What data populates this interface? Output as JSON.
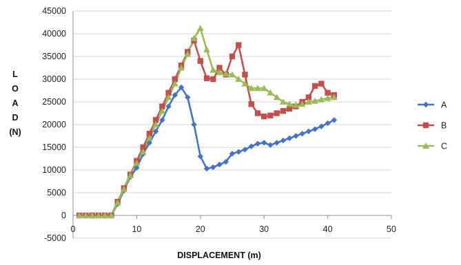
{
  "chart_data": {
    "type": "line",
    "title": "",
    "xlabel": "DISPLACEMENT (m)",
    "ylabel_lines": [
      "L",
      "O",
      "A",
      "D",
      "(N)"
    ],
    "xlim": [
      0,
      50
    ],
    "ylim": [
      -5000,
      45000
    ],
    "xticks": [
      0,
      10,
      20,
      30,
      40,
      50
    ],
    "yticks": [
      -5000,
      0,
      5000,
      10000,
      15000,
      20000,
      25000,
      30000,
      35000,
      40000,
      45000
    ],
    "grid": "horizontal",
    "legend_position": "right",
    "series": [
      {
        "name": "A",
        "color": "#4472C4",
        "marker": "diamond",
        "x": [
          1,
          2,
          3,
          4,
          5,
          6,
          7,
          8,
          9,
          10,
          11,
          12,
          13,
          14,
          15,
          16,
          17,
          18,
          19,
          20,
          21,
          22,
          23,
          24,
          25,
          26,
          27,
          28,
          29,
          30,
          31,
          32,
          33,
          34,
          35,
          36,
          37,
          38,
          39,
          40,
          41
        ],
        "y": [
          0,
          0,
          0,
          0,
          0,
          0,
          2500,
          5500,
          8500,
          10500,
          13500,
          16000,
          18500,
          21000,
          24000,
          26500,
          28200,
          26000,
          20000,
          13000,
          10300,
          10600,
          11200,
          11800,
          13600,
          14000,
          14500,
          15200,
          15800,
          16000,
          15500,
          16000,
          16500,
          17000,
          17500,
          18000,
          18500,
          19000,
          19600,
          20300,
          21000
        ]
      },
      {
        "name": "B",
        "color": "#C0504D",
        "marker": "square",
        "x": [
          1,
          2,
          3,
          4,
          5,
          6,
          7,
          8,
          9,
          10,
          11,
          12,
          13,
          14,
          15,
          16,
          17,
          18,
          19,
          20,
          21,
          22,
          23,
          24,
          25,
          26,
          27,
          28,
          29,
          30,
          31,
          32,
          33,
          34,
          35,
          36,
          37,
          38,
          39,
          40,
          41
        ],
        "y": [
          0,
          0,
          0,
          0,
          0,
          0,
          3000,
          6000,
          9000,
          12000,
          15000,
          18000,
          21000,
          24000,
          27000,
          30000,
          33000,
          36000,
          38500,
          34000,
          30200,
          30000,
          32500,
          31000,
          35000,
          37500,
          31000,
          24500,
          22500,
          21800,
          22000,
          22500,
          23000,
          23500,
          24000,
          25000,
          26000,
          28500,
          29000,
          27000,
          26500
        ]
      },
      {
        "name": "C",
        "color": "#9BBB59",
        "marker": "triangle",
        "x": [
          1,
          2,
          3,
          4,
          5,
          6,
          7,
          8,
          9,
          10,
          11,
          12,
          13,
          14,
          15,
          16,
          17,
          18,
          19,
          20,
          21,
          22,
          23,
          24,
          25,
          26,
          27,
          28,
          29,
          30,
          31,
          32,
          33,
          34,
          35,
          36,
          37,
          38,
          39,
          40,
          41
        ],
        "y": [
          0,
          0,
          0,
          0,
          0,
          0,
          2800,
          5800,
          8800,
          11500,
          14000,
          17000,
          20000,
          23000,
          26000,
          29000,
          32500,
          35500,
          39000,
          41200,
          36500,
          32000,
          31500,
          31200,
          31000,
          30000,
          29000,
          28000,
          28000,
          28000,
          27000,
          26000,
          25000,
          24500,
          24300,
          24500,
          25000,
          25200,
          25500,
          25800,
          26000
        ]
      }
    ]
  }
}
